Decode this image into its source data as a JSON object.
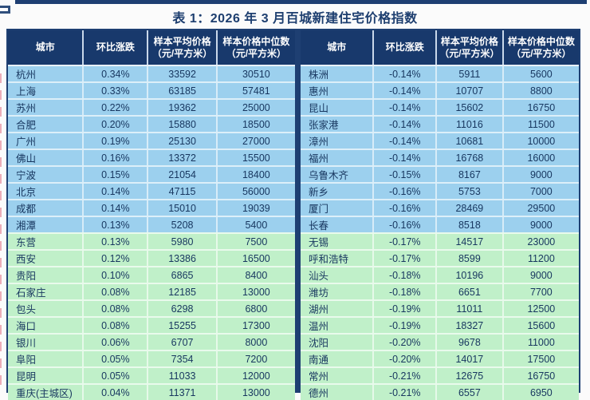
{
  "title": "表 1：2026 年 3 月百城新建住宅价格指数",
  "colors": {
    "header_bg": "#18396c",
    "accent_bar": "#1e3f72",
    "row_blue": "#9cd0ee",
    "row_green": "#c0f0c9",
    "body_text": "#17365f"
  },
  "table": {
    "columns": [
      {
        "label": "城市",
        "sub": ""
      },
      {
        "label": "环比涨跌",
        "sub": ""
      },
      {
        "label": "样本平均价格",
        "sub": "（元/平方米）"
      },
      {
        "label": "样本价格中位数",
        "sub": "（元/平方米）"
      }
    ],
    "left_rows": [
      {
        "city": "杭州",
        "change": "0.34%",
        "avg": "33592",
        "median": "30510",
        "tone": "blue"
      },
      {
        "city": "上海",
        "change": "0.33%",
        "avg": "63185",
        "median": "57481",
        "tone": "blue"
      },
      {
        "city": "苏州",
        "change": "0.22%",
        "avg": "19362",
        "median": "25000",
        "tone": "blue"
      },
      {
        "city": "合肥",
        "change": "0.20%",
        "avg": "15880",
        "median": "18500",
        "tone": "blue"
      },
      {
        "city": "广州",
        "change": "0.19%",
        "avg": "25130",
        "median": "27000",
        "tone": "blue"
      },
      {
        "city": "佛山",
        "change": "0.16%",
        "avg": "13372",
        "median": "15500",
        "tone": "blue"
      },
      {
        "city": "宁波",
        "change": "0.15%",
        "avg": "21054",
        "median": "18400",
        "tone": "blue"
      },
      {
        "city": "北京",
        "change": "0.14%",
        "avg": "47115",
        "median": "56000",
        "tone": "blue"
      },
      {
        "city": "成都",
        "change": "0.14%",
        "avg": "15010",
        "median": "19039",
        "tone": "blue"
      },
      {
        "city": "湘潭",
        "change": "0.13%",
        "avg": "5208",
        "median": "5400",
        "tone": "blue"
      },
      {
        "city": "东营",
        "change": "0.13%",
        "avg": "5980",
        "median": "7500",
        "tone": "green"
      },
      {
        "city": "西安",
        "change": "0.12%",
        "avg": "13386",
        "median": "16500",
        "tone": "green"
      },
      {
        "city": "贵阳",
        "change": "0.10%",
        "avg": "6865",
        "median": "8400",
        "tone": "green"
      },
      {
        "city": "石家庄",
        "change": "0.08%",
        "avg": "12185",
        "median": "13000",
        "tone": "green"
      },
      {
        "city": "包头",
        "change": "0.08%",
        "avg": "6298",
        "median": "6800",
        "tone": "green"
      },
      {
        "city": "海口",
        "change": "0.08%",
        "avg": "15255",
        "median": "17300",
        "tone": "green"
      },
      {
        "city": "银川",
        "change": "0.06%",
        "avg": "6707",
        "median": "8000",
        "tone": "green"
      },
      {
        "city": "阜阳",
        "change": "0.05%",
        "avg": "7354",
        "median": "7200",
        "tone": "green"
      },
      {
        "city": "昆明",
        "change": "0.05%",
        "avg": "11033",
        "median": "12000",
        "tone": "green"
      },
      {
        "city": "重庆(主城区)",
        "change": "0.04%",
        "avg": "11371",
        "median": "13000",
        "tone": "green"
      }
    ],
    "right_rows": [
      {
        "city": "株洲",
        "change": "-0.14%",
        "avg": "5911",
        "median": "5600",
        "tone": "blue"
      },
      {
        "city": "惠州",
        "change": "-0.14%",
        "avg": "10707",
        "median": "8800",
        "tone": "blue"
      },
      {
        "city": "昆山",
        "change": "-0.14%",
        "avg": "15602",
        "median": "16750",
        "tone": "blue"
      },
      {
        "city": "张家港",
        "change": "-0.14%",
        "avg": "11016",
        "median": "11500",
        "tone": "blue"
      },
      {
        "city": "漳州",
        "change": "-0.14%",
        "avg": "10681",
        "median": "10000",
        "tone": "blue"
      },
      {
        "city": "福州",
        "change": "-0.14%",
        "avg": "16768",
        "median": "16000",
        "tone": "blue"
      },
      {
        "city": "乌鲁木齐",
        "change": "-0.15%",
        "avg": "8167",
        "median": "9000",
        "tone": "blue"
      },
      {
        "city": "新乡",
        "change": "-0.16%",
        "avg": "5753",
        "median": "7000",
        "tone": "blue"
      },
      {
        "city": "厦门",
        "change": "-0.16%",
        "avg": "28469",
        "median": "29500",
        "tone": "blue"
      },
      {
        "city": "长春",
        "change": "-0.16%",
        "avg": "8518",
        "median": "9000",
        "tone": "blue"
      },
      {
        "city": "无锡",
        "change": "-0.17%",
        "avg": "14517",
        "median": "23000",
        "tone": "green"
      },
      {
        "city": "呼和浩特",
        "change": "-0.17%",
        "avg": "8599",
        "median": "11200",
        "tone": "green"
      },
      {
        "city": "汕头",
        "change": "-0.18%",
        "avg": "10196",
        "median": "9000",
        "tone": "green"
      },
      {
        "city": "潍坊",
        "change": "-0.18%",
        "avg": "6651",
        "median": "7700",
        "tone": "green"
      },
      {
        "city": "湖州",
        "change": "-0.19%",
        "avg": "11011",
        "median": "12500",
        "tone": "green"
      },
      {
        "city": "温州",
        "change": "-0.19%",
        "avg": "18327",
        "median": "15600",
        "tone": "green"
      },
      {
        "city": "沈阳",
        "change": "-0.20%",
        "avg": "9678",
        "median": "11000",
        "tone": "green"
      },
      {
        "city": "南通",
        "change": "-0.20%",
        "avg": "14017",
        "median": "17500",
        "tone": "green"
      },
      {
        "city": "常州",
        "change": "-0.21%",
        "avg": "12675",
        "median": "16750",
        "tone": "green"
      },
      {
        "city": "德州",
        "change": "-0.21%",
        "avg": "6557",
        "median": "6950",
        "tone": "green"
      }
    ]
  }
}
